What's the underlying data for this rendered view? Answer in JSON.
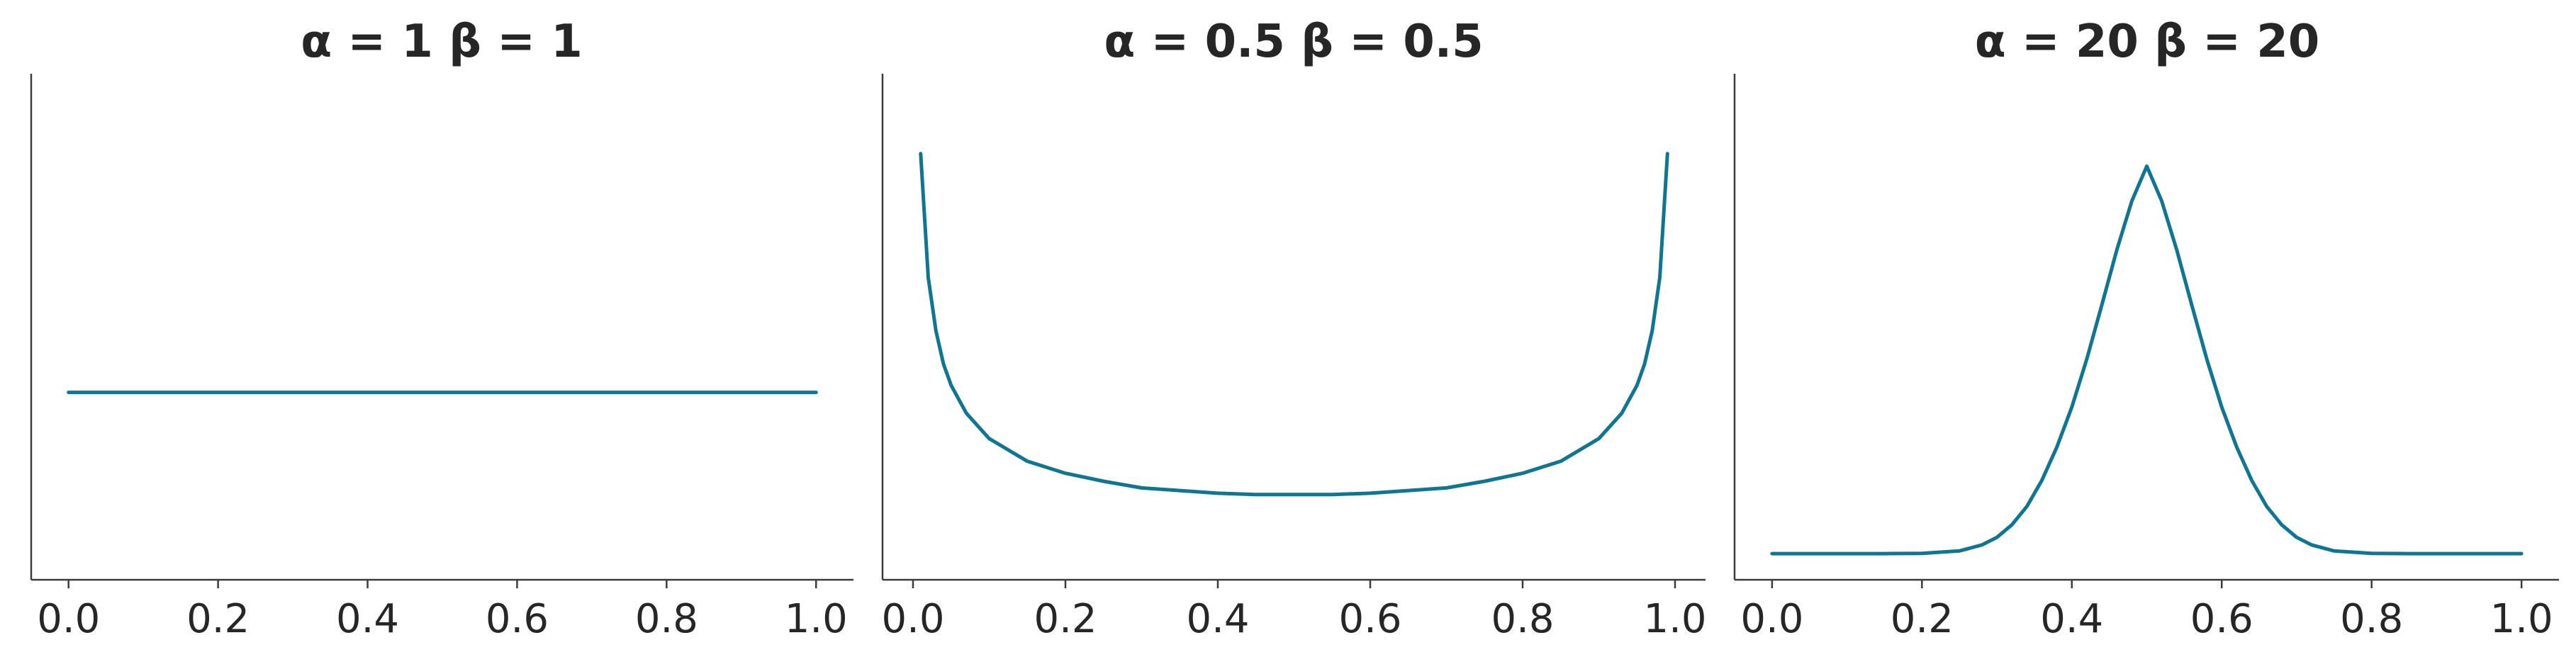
{
  "colors": {
    "line": "#0e7592",
    "text": "#262626",
    "axis": "#3c3c3c",
    "background": "#ffffff"
  },
  "chart_data": [
    {
      "type": "line",
      "title": "α = 1 β = 1",
      "xlabel": "",
      "ylabel": "",
      "xlim": [
        -0.05,
        1.05
      ],
      "ylim": [
        0,
        2.7
      ],
      "xticks": [
        0.0,
        0.2,
        0.4,
        0.6,
        0.8,
        1.0
      ],
      "xtick_labels": [
        "0.0",
        "0.2",
        "0.4",
        "0.6",
        "0.8",
        "1.0"
      ],
      "y_ticks_shown": false,
      "grid": false,
      "series": [
        {
          "x": [
            0.0,
            0.1,
            0.2,
            0.3,
            0.4,
            0.5,
            0.6,
            0.7,
            0.8,
            0.9,
            1.0
          ],
          "y": [
            1.0,
            1.0,
            1.0,
            1.0,
            1.0,
            1.0,
            1.0,
            1.0,
            1.0,
            1.0,
            1.0
          ]
        }
      ]
    },
    {
      "type": "line",
      "title": "α = 0.5 β = 0.5",
      "xlabel": "",
      "ylabel": "",
      "xlim": [
        -0.04,
        1.04
      ],
      "ylim": [
        0,
        3.8
      ],
      "xticks": [
        0.0,
        0.2,
        0.4,
        0.6,
        0.8,
        1.0
      ],
      "xtick_labels": [
        "0.0",
        "0.2",
        "0.4",
        "0.6",
        "0.8",
        "1.0"
      ],
      "y_ticks_shown": false,
      "grid": false,
      "series": [
        {
          "x": [
            0.01,
            0.02,
            0.03,
            0.04,
            0.05,
            0.07,
            0.1,
            0.15,
            0.2,
            0.25,
            0.3,
            0.35,
            0.4,
            0.45,
            0.5,
            0.55,
            0.6,
            0.65,
            0.7,
            0.75,
            0.8,
            0.85,
            0.9,
            0.93,
            0.95,
            0.96,
            0.97,
            0.98,
            0.99
          ],
          "y": [
            3.2,
            2.27,
            1.87,
            1.62,
            1.46,
            1.25,
            1.06,
            0.89,
            0.8,
            0.74,
            0.69,
            0.67,
            0.65,
            0.64,
            0.64,
            0.64,
            0.65,
            0.67,
            0.69,
            0.74,
            0.8,
            0.89,
            1.06,
            1.25,
            1.46,
            1.62,
            1.87,
            2.27,
            3.2
          ]
        }
      ]
    },
    {
      "type": "line",
      "title": "α = 20 β = 20",
      "xlabel": "",
      "ylabel": "",
      "xlim": [
        -0.05,
        1.05
      ],
      "ylim": [
        -0.3,
        5.5
      ],
      "xticks": [
        0.0,
        0.2,
        0.4,
        0.6,
        0.8,
        1.0
      ],
      "xtick_labels": [
        "0.0",
        "0.2",
        "0.4",
        "0.6",
        "0.8",
        "1.0"
      ],
      "y_ticks_shown": false,
      "grid": false,
      "series": [
        {
          "x": [
            0.0,
            0.1,
            0.15,
            0.2,
            0.25,
            0.28,
            0.3,
            0.32,
            0.34,
            0.36,
            0.38,
            0.4,
            0.42,
            0.44,
            0.46,
            0.48,
            0.5,
            0.52,
            0.54,
            0.56,
            0.58,
            0.6,
            0.62,
            0.64,
            0.66,
            0.68,
            0.7,
            0.72,
            0.75,
            0.8,
            0.85,
            0.9,
            1.0
          ],
          "y": [
            0.0,
            0.0,
            0.0,
            0.002,
            0.031,
            0.1,
            0.186,
            0.33,
            0.54,
            0.84,
            1.22,
            1.68,
            2.23,
            2.85,
            3.48,
            4.04,
            4.44,
            4.04,
            3.48,
            2.85,
            2.23,
            1.68,
            1.22,
            0.84,
            0.54,
            0.33,
            0.186,
            0.1,
            0.031,
            0.002,
            0.0,
            0.0,
            0.0
          ]
        }
      ]
    }
  ]
}
